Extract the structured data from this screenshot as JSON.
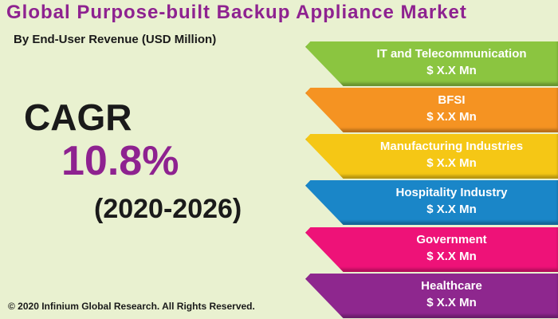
{
  "title": "Global Purpose-built Backup Appliance Market",
  "subtitle": "By End-User Revenue (USD Million)",
  "cagr": {
    "label": "CAGR",
    "value": "10.8%",
    "period": "(2020-2026)"
  },
  "segments": [
    {
      "name": "IT and Telecommunication",
      "value": "$ X.X Mn",
      "color": "#8bc540"
    },
    {
      "name": "BFSI",
      "value": "$ X.X Mn",
      "color": "#f59322"
    },
    {
      "name": "Manufacturing Industries",
      "value": "$ X.X Mn",
      "color": "#f5c715"
    },
    {
      "name": "Hospitality Industry",
      "value": "$ X.X Mn",
      "color": "#1a86c8"
    },
    {
      "name": "Government",
      "value": "$ X.X Mn",
      "color": "#ee1278"
    },
    {
      "name": "Healthcare",
      "value": "$ X.X Mn",
      "color": "#8e278e"
    }
  ],
  "copyright": "© 2020 Infinium Global Research. All Rights Reserved."
}
